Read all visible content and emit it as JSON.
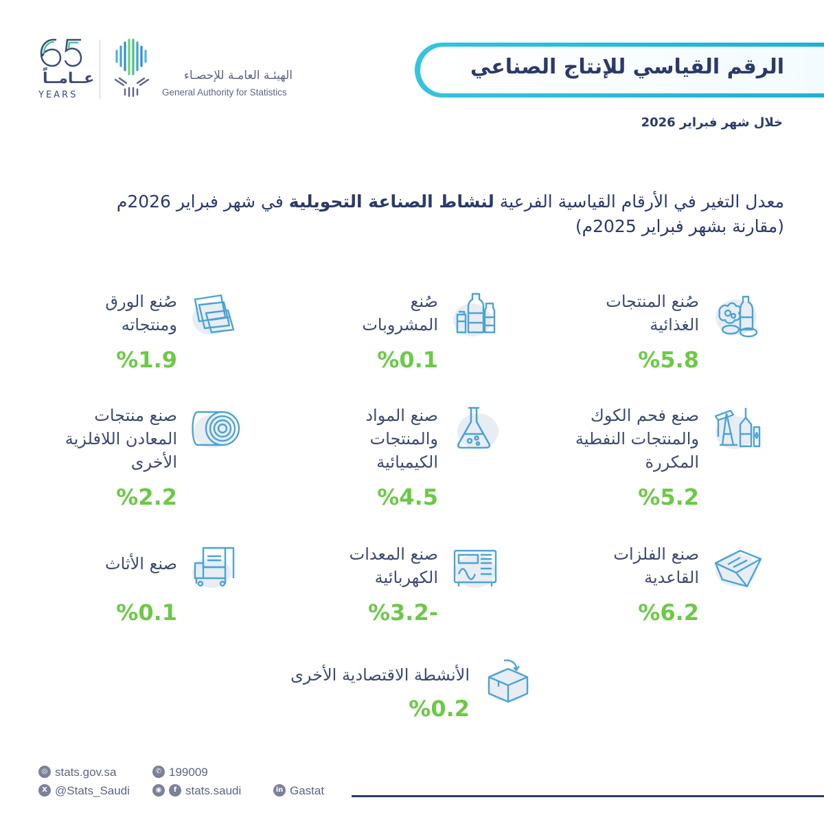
{
  "logo65": {
    "number": "65",
    "arabic": "عــامــاً",
    "years": "YEARS"
  },
  "gastat": {
    "name_ar": "الهيئـة العامـة للإحصـاء",
    "name_en": "General Authority for Statistics"
  },
  "header": {
    "title": "الرقم القياسي للإنتاج الصناعي",
    "period": "خلال شهر فبراير 2026"
  },
  "heading": {
    "part1": "معدل التغير في الأرقام القياسية الفرعية ",
    "part2": "لنشاط الصناعة التحويلية",
    "part3": " في شهر فبراير 2026م",
    "line2": "(مقارنة بشهر فبراير 2025م)"
  },
  "activities": [
    {
      "name": "food-products",
      "label_lines": [
        "صُنع المنتجات",
        "الغذائية"
      ],
      "value": "%5.8",
      "icon": "food-icon"
    },
    {
      "name": "beverages",
      "label_lines": [
        "صُنع",
        "المشروبات"
      ],
      "value": "%0.1",
      "icon": "bottles-icon"
    },
    {
      "name": "paper",
      "label_lines": [
        "صُنع الورق",
        "ومنتجاته"
      ],
      "value": "%1.9",
      "icon": "paper-icon"
    },
    {
      "name": "coke-refined",
      "label_lines": [
        "صنع فحم الكوك",
        "والمنتجات النفطية",
        "المكررة"
      ],
      "value": "%5.2",
      "icon": "oil-pump-icon"
    },
    {
      "name": "chemicals",
      "label_lines": [
        "صنع المواد",
        "والمنتجات",
        "الكيميائية"
      ],
      "value": "%4.5",
      "icon": "flask-icon"
    },
    {
      "name": "non-metallic",
      "label_lines": [
        "صنع منتجات",
        "المعادن اللافلزية",
        "الأخرى"
      ],
      "value": "%2.2",
      "icon": "roll-icon"
    },
    {
      "name": "basic-metals",
      "label_lines": [
        "صنع الفلزات",
        "القاعدية"
      ],
      "value": "%6.2",
      "icon": "metal-ingot-icon"
    },
    {
      "name": "electrical",
      "label_lines": [
        "صنع المعدات",
        "الكهربائية"
      ],
      "value": "-%3.2",
      "icon": "electrical-equipment-icon"
    },
    {
      "name": "furniture",
      "label_lines": [
        "صنع الأثاث"
      ],
      "value": "%0.1",
      "icon": "armchair-icon"
    },
    {
      "name": "other",
      "label_lines": [
        "الأنشطة الاقتصادية الأخرى"
      ],
      "value": "%0.2",
      "icon": "box-icon"
    }
  ],
  "footer": {
    "website": "stats.gov.sa",
    "phone": "199009",
    "x_handle": "@Stats_Saudi",
    "social_handle": "stats.saudi",
    "linkedin": "Gastat"
  },
  "colors": {
    "accent_cyan": "#21aed3",
    "navy": "#2b3a67",
    "value_green": "#6cc947",
    "icon_blue": "#5aaed6"
  }
}
